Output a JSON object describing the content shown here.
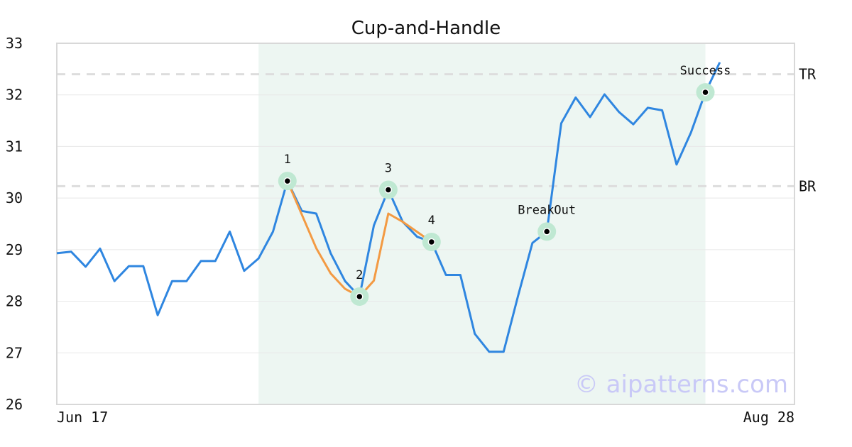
{
  "chart_data": {
    "type": "line",
    "title": "Cup-and-Handle",
    "xlabel": "",
    "ylabel": "",
    "x_tick_labels": [
      "Jun 17",
      "Aug 28"
    ],
    "y_ticks": [
      26,
      27,
      28,
      29,
      30,
      31,
      32,
      33
    ],
    "ylim": [
      26,
      33
    ],
    "grid": "horizontal",
    "colors": {
      "price": "#2f86e0",
      "pattern": "#f39a43",
      "highlight": "#edf6f2",
      "marker_halo": "#bfe8d2",
      "level_line": "#dddddd",
      "watermark": "#c9c9f7"
    },
    "series": [
      {
        "values": [
          28.93,
          28.96,
          28.67,
          29.02,
          28.39,
          28.68,
          28.68,
          27.73,
          28.39,
          28.39,
          28.78,
          28.78,
          29.35,
          28.59,
          28.83,
          29.35,
          30.33,
          29.75,
          29.7,
          28.93,
          28.39,
          28.09,
          29.47,
          30.16,
          29.54,
          29.25,
          29.15,
          28.51,
          28.51,
          27.37,
          27.02,
          27.02,
          28.1,
          29.13,
          29.35,
          31.45,
          31.95,
          31.57,
          32.01,
          31.67,
          31.43,
          31.75,
          31.7,
          30.65,
          31.27,
          32.05,
          32.63
        ]
      }
    ],
    "pattern_path": {
      "x": [
        16,
        18,
        19,
        20,
        21,
        22,
        23,
        24,
        26
      ],
      "y": [
        30.33,
        29.03,
        28.54,
        28.24,
        28.09,
        28.4,
        29.7,
        29.54,
        29.15
      ]
    },
    "highlight_x_range": [
      14,
      45
    ],
    "levels": [
      {
        "label": "TR",
        "value": 32.4
      },
      {
        "label": "BR",
        "value": 30.23
      }
    ],
    "annotations": [
      {
        "label": "1",
        "x": 16,
        "y": 30.33,
        "pos": "above"
      },
      {
        "label": "2",
        "x": 21,
        "y": 28.09,
        "pos": "above"
      },
      {
        "label": "3",
        "x": 23,
        "y": 30.16,
        "pos": "above"
      },
      {
        "label": "4",
        "x": 26,
        "y": 29.15,
        "pos": "above"
      },
      {
        "label": "BreakOut",
        "x": 34,
        "y": 29.35,
        "pos": "above"
      },
      {
        "label": "Success",
        "x": 45,
        "y": 32.05,
        "pos": "above"
      }
    ]
  },
  "watermark": "© aipatterns.com"
}
